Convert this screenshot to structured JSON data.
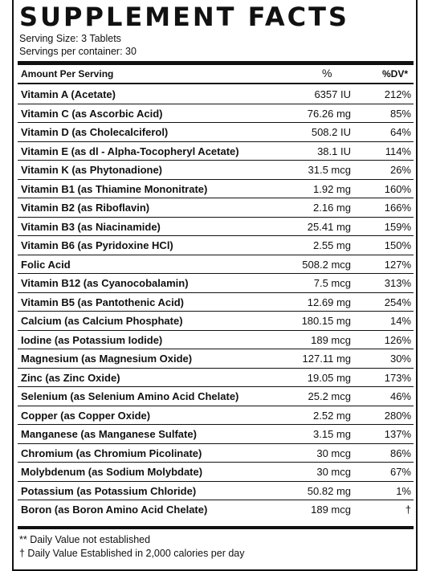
{
  "title": "SUPPLEMENT FACTS",
  "serving_size": "Serving Size: 3 Tablets",
  "servings_per_container": "Servings per container: 30",
  "header": {
    "amount_per_serving": "Amount Per Serving",
    "percent": "%",
    "dv": "%DV*"
  },
  "nutrients": [
    {
      "name": "Vitamin A (Acetate)",
      "amount": "6357 IU",
      "dv": "212%"
    },
    {
      "name": "Vitamin C (as Ascorbic Acid)",
      "amount": "76.26 mg",
      "dv": "85%"
    },
    {
      "name": "Vitamin D (as Cholecalciferol)",
      "amount": "508.2 IU",
      "dv": "64%"
    },
    {
      "name": "Vitamin E (as dl - Alpha-Tocopheryl Acetate)",
      "amount": "38.1 IU",
      "dv": "114%"
    },
    {
      "name": "Vitamin K (as Phytonadione)",
      "amount": "31.5 mcg",
      "dv": "26%"
    },
    {
      "name": "Vitamin B1 (as Thiamine Mononitrate)",
      "amount": "1.92 mg",
      "dv": "160%"
    },
    {
      "name": "Vitamin B2 (as Riboflavin)",
      "amount": "2.16 mg",
      "dv": "166%"
    },
    {
      "name": "Vitamin B3 (as Niacinamide)",
      "amount": "25.41 mg",
      "dv": "159%"
    },
    {
      "name": "Vitamin B6 (as Pyridoxine HCl)",
      "amount": "2.55 mg",
      "dv": "150%"
    },
    {
      "name": "Folic Acid",
      "amount": "508.2 mcg",
      "dv": "127%"
    },
    {
      "name": "Vitamin B12 (as Cyanocobalamin)",
      "amount": "7.5 mcg",
      "dv": "313%"
    },
    {
      "name": "Vitamin B5 (as Pantothenic Acid)",
      "amount": "12.69 mg",
      "dv": "254%"
    },
    {
      "name": "Calcium (as Calcium Phosphate)",
      "amount": "180.15 mg",
      "dv": "14%"
    },
    {
      "name": "Iodine (as Potassium Iodide)",
      "amount": "189 mcg",
      "dv": "126%"
    },
    {
      "name": "Magnesium (as Magnesium Oxide)",
      "amount": "127.11 mg",
      "dv": "30%"
    },
    {
      "name": "Zinc (as Zinc Oxide)",
      "amount": "19.05 mg",
      "dv": "173%"
    },
    {
      "name": "Selenium (as Selenium Amino Acid Chelate)",
      "amount": "25.2 mcg",
      "dv": "46%"
    },
    {
      "name": "Copper (as Copper Oxide)",
      "amount": "2.52 mg",
      "dv": "280%"
    },
    {
      "name": "Manganese (as Manganese Sulfate)",
      "amount": "3.15 mg",
      "dv": "137%"
    },
    {
      "name": "Chromium (as Chromium Picolinate)",
      "amount": "30 mcg",
      "dv": "86%"
    },
    {
      "name": "Molybdenum (as Sodium Molybdate)",
      "amount": "30 mcg",
      "dv": "67%"
    },
    {
      "name": "Potassium (as Potassium Chloride)",
      "amount": "50.82 mg",
      "dv": "1%"
    },
    {
      "name": "Boron (as Boron Amino Acid Chelate)",
      "amount": "189 mcg",
      "dv": "†"
    }
  ],
  "footnotes": [
    "** Daily Value not established",
    "† Daily Value Established in 2,000 calories per day"
  ]
}
